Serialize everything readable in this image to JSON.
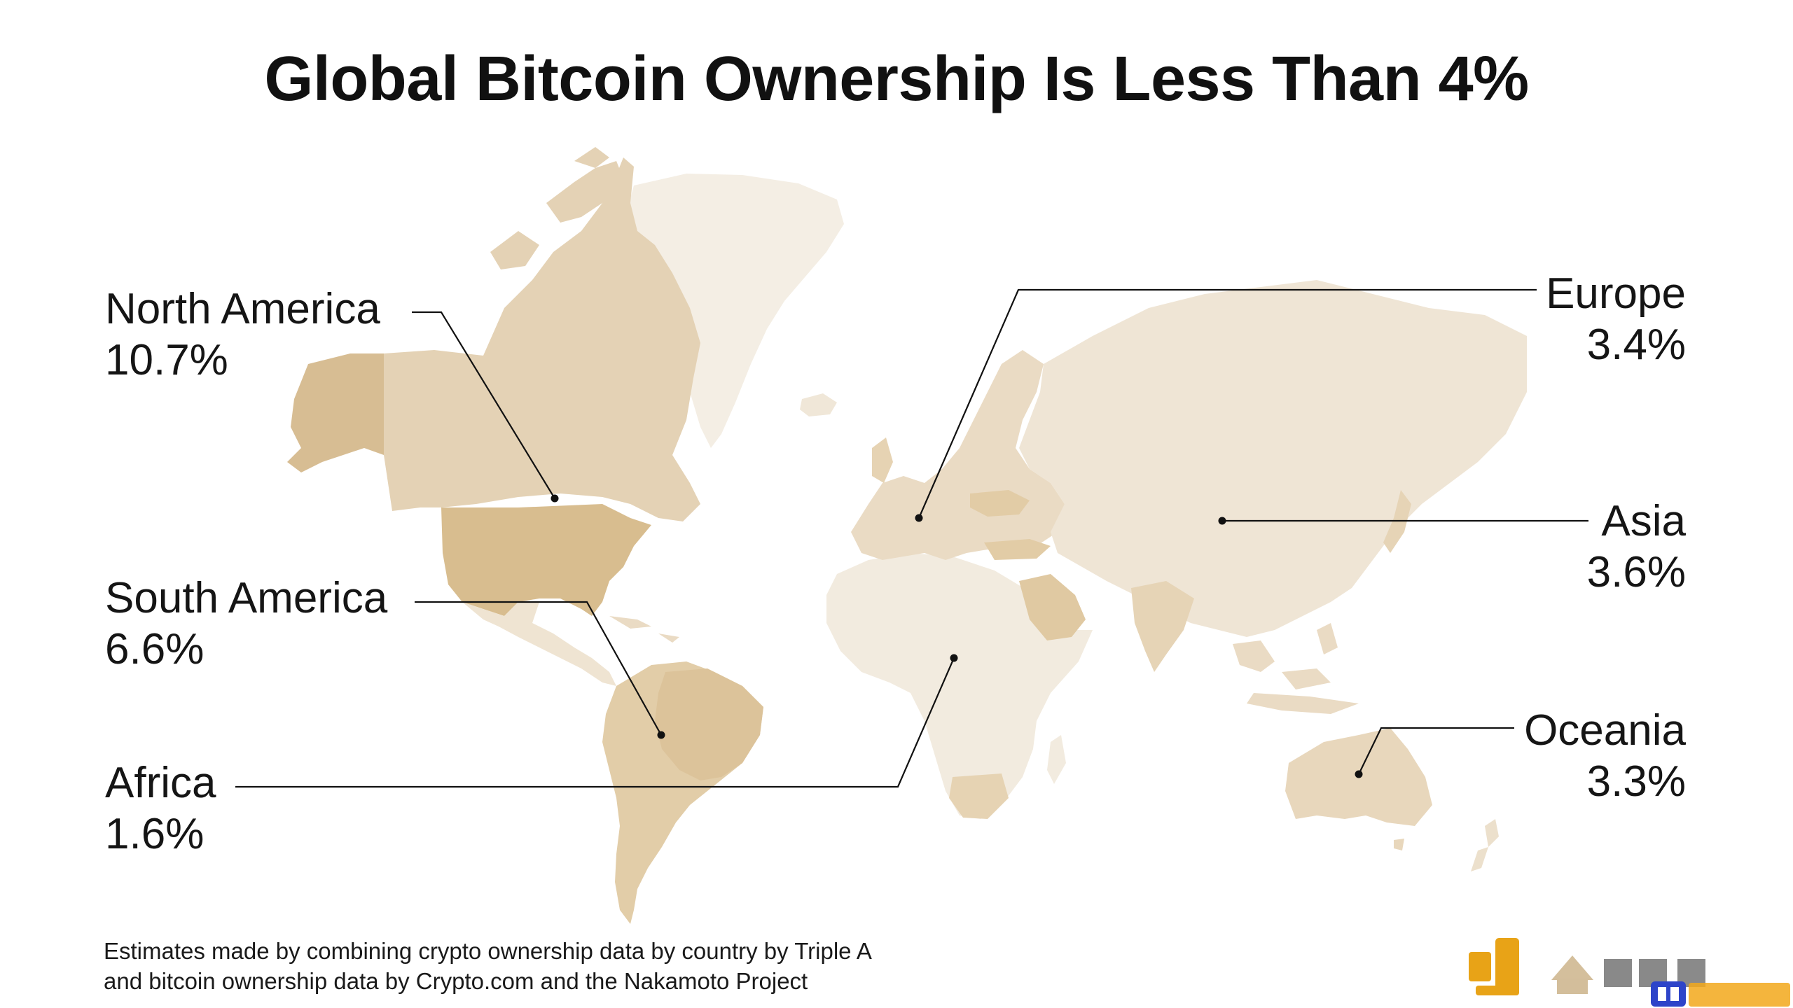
{
  "title": "Global Bitcoin Ownership Is Less Than 4%",
  "regions": [
    {
      "id": "north-america",
      "name": "North America",
      "value": "10.7%",
      "color": "#d8bd8f"
    },
    {
      "id": "south-america",
      "name": "South America",
      "value": "6.6%",
      "color": "#e0c9a2"
    },
    {
      "id": "africa",
      "name": "Africa",
      "value": "1.6%",
      "color": "#f2ebdf"
    },
    {
      "id": "europe",
      "name": "Europe",
      "value": "3.4%",
      "color": "#eadbc4"
    },
    {
      "id": "asia",
      "name": "Asia",
      "value": "3.6%",
      "color": "#efe5d5"
    },
    {
      "id": "oceania",
      "name": "Oceania",
      "value": "3.3%",
      "color": "#e8d7bc"
    }
  ],
  "footer": {
    "line1": "Estimates made by combining crypto ownership data by country by Triple A",
    "line2": "and bitcoin ownership data by Crypto.com and the Nakamoto Project"
  },
  "colors": {
    "accent_gold": "#e8a317",
    "land_base": "#f2ebdf",
    "leader_line": "#111111",
    "greenland": "#f4eee4"
  },
  "icons": [
    "brand-logo-icon",
    "watermark-badge-icon"
  ]
}
